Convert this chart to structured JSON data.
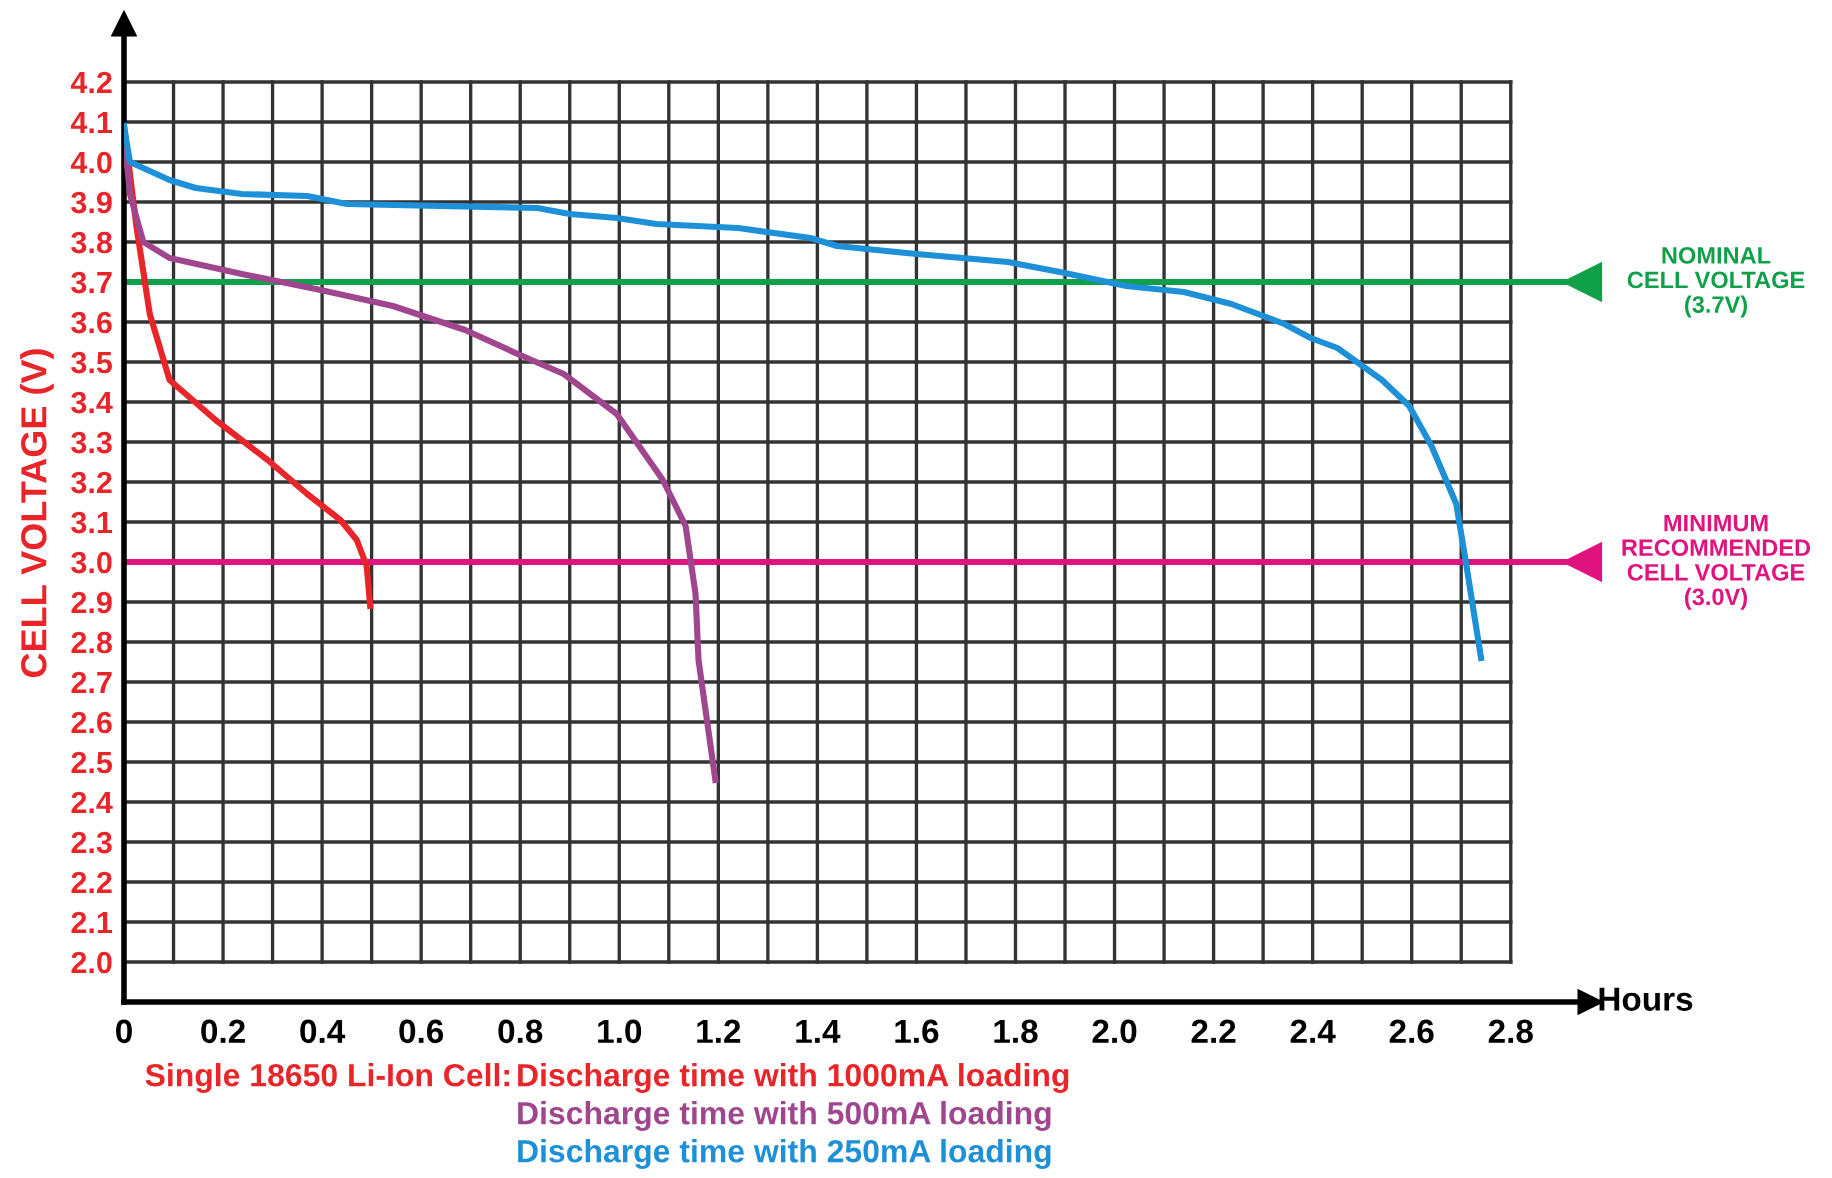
{
  "chart_data": {
    "type": "line",
    "ylabel": "CELL VOLTAGE (V)",
    "xlabel": "Hours",
    "xlim": [
      0,
      2.96
    ],
    "ylim": [
      1.9,
      4.345
    ],
    "xticks": [
      0,
      {
        "value": 0.1,
        "label": null
      },
      0.2,
      {
        "value": 0.3,
        "label": null
      },
      0.4,
      {
        "value": 0.5,
        "label": null
      },
      0.6,
      {
        "value": 0.7,
        "label": null
      },
      0.8,
      {
        "value": 0.9,
        "label": null
      },
      {
        "value": 1.0,
        "label": "1.0"
      },
      {
        "value": 1.1,
        "label": null
      },
      1.2,
      {
        "value": 1.3,
        "label": null
      },
      1.4,
      {
        "value": 1.5,
        "label": null
      },
      1.6,
      {
        "value": 1.7,
        "label": null
      },
      1.8,
      {
        "value": 1.9,
        "label": null
      },
      {
        "value": 2.0,
        "label": "2.0"
      },
      {
        "value": 2.1,
        "label": null
      },
      2.2,
      {
        "value": 2.3,
        "label": null
      },
      2.4,
      {
        "value": 2.5,
        "label": null
      },
      2.6,
      {
        "value": 2.7,
        "label": null
      },
      2.8
    ],
    "yticks": [
      {
        "value": 2.0,
        "label": "2.0"
      },
      2.1,
      2.2,
      2.3,
      2.4,
      2.5,
      2.6,
      2.7,
      2.8,
      2.9,
      {
        "value": 3.0,
        "label": "3.0"
      },
      3.1,
      3.2,
      3.3,
      3.4,
      3.5,
      3.6,
      3.7,
      3.8,
      3.9,
      {
        "value": 4.0,
        "label": "4.0"
      },
      4.1,
      4.2
    ],
    "grid": true,
    "legend": "bottom",
    "marker": "none",
    "line_style": "solid",
    "annotations": [
      "Single 18650 Li-Ion Cell:"
    ],
    "ref_lines": [
      {
        "axis": "y",
        "value": 3.7,
        "label": "NOMINAL\nCELL VOLTAGE\n(3.7V)",
        "color": "#10a04a"
      },
      {
        "axis": "y",
        "value": 3.0,
        "label": "MINIMUM\nRECOMMENDED\nCELL VOLTAGE\n(3.0V)",
        "color": "#e0147f"
      }
    ],
    "series": [
      {
        "name": "Discharge time with 1000mA loading",
        "color": "#e8262a",
        "x": [
          0,
          0.025,
          0.052,
          0.092,
          0.185,
          0.29,
          0.37,
          0.437,
          0.47,
          0.49,
          0.497
        ],
        "values": [
          4.09,
          3.84,
          3.62,
          3.455,
          3.355,
          3.255,
          3.17,
          3.105,
          3.055,
          2.99,
          2.89
        ]
      },
      {
        "name": "Discharge time with 500mA loading",
        "color": "#a0468e",
        "x": [
          0,
          0.012,
          0.039,
          0.092,
          0.238,
          0.397,
          0.543,
          0.689,
          0.795,
          0.888,
          0.995,
          1.088,
          1.134,
          1.154,
          1.16,
          1.194
        ],
        "values": [
          4.07,
          3.92,
          3.8,
          3.76,
          3.72,
          3.68,
          3.64,
          3.58,
          3.52,
          3.47,
          3.37,
          3.205,
          3.09,
          2.92,
          2.755,
          2.455
        ]
      },
      {
        "name": "Discharge time with 250mA loading",
        "color": "#1e90d8",
        "x": [
          0,
          0.012,
          0.092,
          0.145,
          0.238,
          0.37,
          0.45,
          0.835,
          0.9,
          0.995,
          1.075,
          1.24,
          1.386,
          1.44,
          1.6,
          1.785,
          1.89,
          2.024,
          2.14,
          2.236,
          2.343,
          2.396,
          2.45,
          2.54,
          2.595,
          2.64,
          2.69,
          2.71,
          2.74
        ],
        "values": [
          4.09,
          4.0,
          3.955,
          3.935,
          3.92,
          3.915,
          3.895,
          3.885,
          3.87,
          3.86,
          3.845,
          3.835,
          3.81,
          3.79,
          3.77,
          3.75,
          3.725,
          3.69,
          3.675,
          3.645,
          3.595,
          3.56,
          3.535,
          3.455,
          3.39,
          3.29,
          3.145,
          2.995,
          2.76
        ]
      }
    ]
  }
}
